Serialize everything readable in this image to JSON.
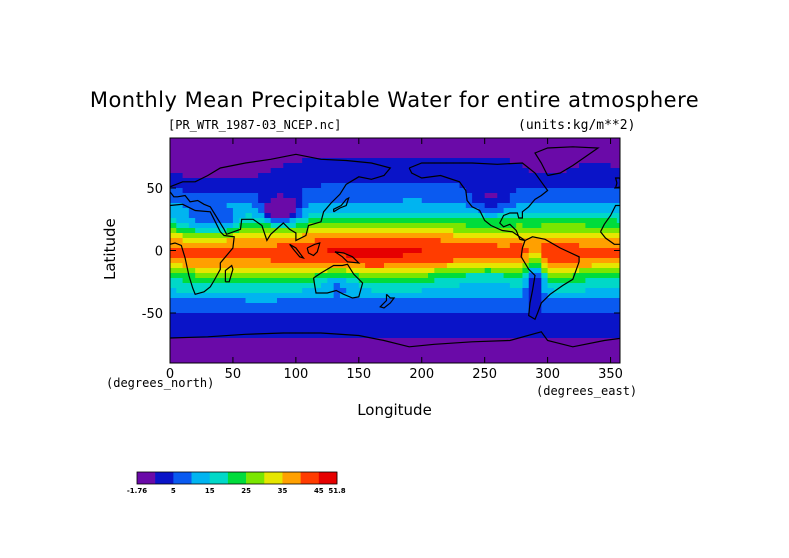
{
  "chart_data": {
    "type": "heatmap",
    "title": "Monthly Mean Precipitable Water for entire atmosphere",
    "file_label": "[PR_WTR_1987-03_NCEP.nc]",
    "units_label": "(units:kg/m**2)",
    "xlabel": "Longitude",
    "ylabel": "Latitude",
    "x_unit": "(degrees_east)",
    "y_unit": "(degrees_north)",
    "xlim": [
      0,
      357.5
    ],
    "ylim": [
      -90,
      90
    ],
    "x_ticks": [
      0,
      50,
      100,
      150,
      200,
      250,
      300,
      350
    ],
    "y_ticks": [
      -50,
      0,
      50
    ],
    "color_levels": [
      -1.76,
      5,
      10,
      15,
      20,
      25,
      30,
      35,
      40,
      45,
      51.8
    ],
    "colorbar_labels": [
      "-1.76",
      "5",
      "15",
      "25",
      "35",
      "45",
      "51.8"
    ],
    "colors": [
      "#6a0aa8",
      "#0a14c8",
      "#0a5af0",
      "#00b4f0",
      "#00d8c8",
      "#00dc3c",
      "#7ae600",
      "#e6e600",
      "#ffa000",
      "#ff3c00",
      "#e60000"
    ],
    "zonal_mean_profile": {
      "latitudes": [
        90,
        75,
        60,
        50,
        40,
        30,
        20,
        10,
        0,
        -10,
        -20,
        -30,
        -40,
        -50,
        -60,
        -70,
        -80,
        -90
      ],
      "values": [
        3,
        5,
        8,
        11,
        15,
        21,
        30,
        41,
        46,
        44,
        32,
        22,
        15,
        10,
        7,
        5,
        3,
        1
      ]
    }
  },
  "map": {
    "coastline": "continental outlines"
  }
}
